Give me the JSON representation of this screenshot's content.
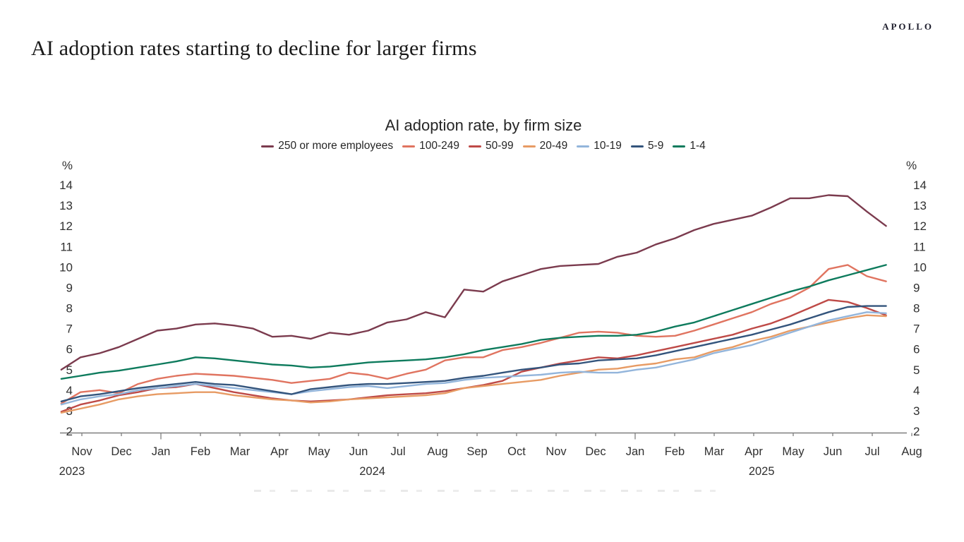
{
  "page": {
    "headline": "AI adoption rates starting to decline for larger firms",
    "brand": "APOLLO"
  },
  "chart_data": {
    "type": "line",
    "title": "AI adoption rate, by firm size",
    "unit_label": "%",
    "grid": false,
    "legend_position": "top",
    "y_axis": {
      "min": 2,
      "max": 14,
      "ticks": [
        14,
        13,
        12,
        11,
        10,
        9,
        8,
        7,
        6,
        5,
        4,
        3,
        2
      ],
      "label_both_sides": true
    },
    "x_axis": {
      "months": [
        "Nov",
        "Dec",
        "Jan",
        "Feb",
        "Mar",
        "Apr",
        "May",
        "Jun",
        "Jul",
        "Aug",
        "Sep",
        "Oct",
        "Nov",
        "Dec",
        "Jan",
        "Feb",
        "Mar",
        "Apr",
        "May",
        "Jun",
        "Jul",
        "Aug"
      ],
      "year_labels": [
        {
          "text": "2023",
          "month_index": -0.25
        },
        {
          "text": "2024",
          "month_index": 7.35
        },
        {
          "text": "2025",
          "month_index": 17.2
        }
      ],
      "data_start_month": -0.52,
      "data_end_month": 20.35,
      "frequency": "biweekly"
    },
    "series": [
      {
        "name": "250 or more employees",
        "color": "#7b3b4e",
        "values": [
          5.0,
          5.6,
          5.8,
          6.1,
          6.5,
          6.9,
          7.0,
          7.2,
          7.25,
          7.15,
          7.0,
          6.6,
          6.65,
          6.5,
          6.8,
          6.7,
          6.9,
          7.3,
          7.45,
          7.8,
          7.55,
          8.9,
          8.8,
          9.3,
          9.6,
          9.9,
          10.05,
          10.1,
          10.15,
          10.5,
          10.7,
          11.1,
          11.4,
          11.8,
          12.1,
          12.3,
          12.5,
          12.9,
          13.35,
          13.35,
          13.5,
          13.45,
          12.7,
          12.0
        ]
      },
      {
        "name": "100-249",
        "color": "#e07460",
        "values": [
          3.35,
          3.9,
          4.0,
          3.85,
          4.3,
          4.55,
          4.7,
          4.8,
          4.75,
          4.7,
          4.6,
          4.5,
          4.35,
          4.45,
          4.55,
          4.85,
          4.75,
          4.55,
          4.8,
          5.0,
          5.45,
          5.6,
          5.6,
          5.95,
          6.1,
          6.3,
          6.55,
          6.8,
          6.85,
          6.8,
          6.65,
          6.6,
          6.65,
          6.9,
          7.2,
          7.5,
          7.8,
          8.2,
          8.5,
          9.0,
          9.9,
          10.1,
          9.55,
          9.3
        ]
      },
      {
        "name": "50-99",
        "color": "#be4a47",
        "values": [
          2.95,
          3.3,
          3.5,
          3.75,
          3.9,
          4.1,
          4.15,
          4.3,
          4.1,
          3.9,
          3.75,
          3.6,
          3.5,
          3.45,
          3.5,
          3.55,
          3.65,
          3.75,
          3.8,
          3.85,
          3.95,
          4.1,
          4.25,
          4.45,
          4.9,
          5.1,
          5.3,
          5.45,
          5.6,
          5.55,
          5.7,
          5.9,
          6.1,
          6.3,
          6.5,
          6.7,
          7.0,
          7.25,
          7.6,
          8.0,
          8.4,
          8.3,
          8.0,
          7.65
        ]
      },
      {
        "name": "20-49",
        "color": "#e79b64",
        "values": [
          2.9,
          3.1,
          3.3,
          3.55,
          3.7,
          3.8,
          3.85,
          3.9,
          3.9,
          3.75,
          3.65,
          3.55,
          3.5,
          3.4,
          3.45,
          3.55,
          3.6,
          3.65,
          3.7,
          3.75,
          3.85,
          4.1,
          4.2,
          4.3,
          4.4,
          4.5,
          4.7,
          4.85,
          5.0,
          5.05,
          5.2,
          5.3,
          5.5,
          5.6,
          5.9,
          6.1,
          6.4,
          6.6,
          6.9,
          7.1,
          7.3,
          7.5,
          7.65,
          7.6
        ]
      },
      {
        "name": "10-19",
        "color": "#93b5db",
        "values": [
          3.3,
          3.55,
          3.7,
          3.8,
          4.0,
          4.1,
          4.2,
          4.3,
          4.2,
          4.1,
          4.0,
          3.9,
          3.8,
          3.95,
          4.05,
          4.15,
          4.2,
          4.1,
          4.2,
          4.3,
          4.35,
          4.5,
          4.6,
          4.65,
          4.7,
          4.75,
          4.85,
          4.9,
          4.85,
          4.85,
          5.0,
          5.1,
          5.3,
          5.5,
          5.8,
          6.0,
          6.2,
          6.5,
          6.8,
          7.1,
          7.4,
          7.6,
          7.8,
          7.75
        ]
      },
      {
        "name": "5-9",
        "color": "#33547c",
        "values": [
          3.45,
          3.7,
          3.8,
          3.95,
          4.1,
          4.2,
          4.3,
          4.4,
          4.3,
          4.25,
          4.1,
          3.95,
          3.8,
          4.05,
          4.15,
          4.25,
          4.3,
          4.3,
          4.35,
          4.4,
          4.45,
          4.6,
          4.7,
          4.85,
          5.0,
          5.1,
          5.25,
          5.3,
          5.45,
          5.5,
          5.55,
          5.7,
          5.9,
          6.1,
          6.3,
          6.5,
          6.7,
          6.95,
          7.2,
          7.5,
          7.8,
          8.05,
          8.1,
          8.1
        ]
      },
      {
        "name": "1-4",
        "color": "#0e7b5d",
        "values": [
          4.55,
          4.7,
          4.85,
          4.95,
          5.1,
          5.25,
          5.4,
          5.6,
          5.55,
          5.45,
          5.35,
          5.25,
          5.2,
          5.1,
          5.15,
          5.25,
          5.35,
          5.4,
          5.45,
          5.5,
          5.6,
          5.75,
          5.95,
          6.1,
          6.25,
          6.45,
          6.55,
          6.6,
          6.65,
          6.65,
          6.7,
          6.85,
          7.1,
          7.3,
          7.6,
          7.9,
          8.2,
          8.5,
          8.8,
          9.05,
          9.35,
          9.6,
          9.85,
          10.1
        ]
      }
    ]
  }
}
